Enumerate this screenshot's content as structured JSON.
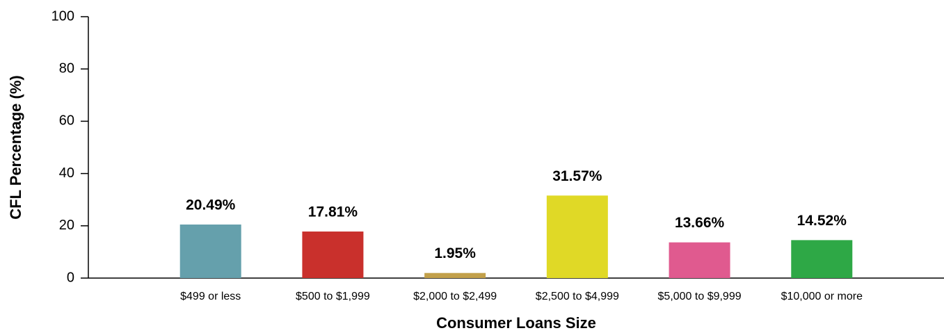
{
  "chart_data": {
    "type": "bar",
    "xlabel": "Consumer Loans Size",
    "ylabel": "CFL Percentage (%)",
    "categories": [
      "$499 or less",
      "$500 to $1,999",
      "$2,000 to $2,499",
      "$2,500 to $4,999",
      "$5,000 to $9,999",
      "$10,000 or more"
    ],
    "values": [
      20.49,
      17.81,
      1.95,
      31.57,
      13.66,
      14.52
    ],
    "value_labels": [
      "20.49%",
      "17.81%",
      "1.95%",
      "31.57%",
      "13.66%",
      "14.52%"
    ],
    "colors": [
      "#65a0ac",
      "#c9302c",
      "#c2a04a",
      "#e0d926",
      "#e05a8f",
      "#2ea846"
    ],
    "ylim": [
      0,
      100
    ],
    "yticks": [
      0,
      20,
      40,
      60,
      80,
      100
    ],
    "grid": false
  }
}
